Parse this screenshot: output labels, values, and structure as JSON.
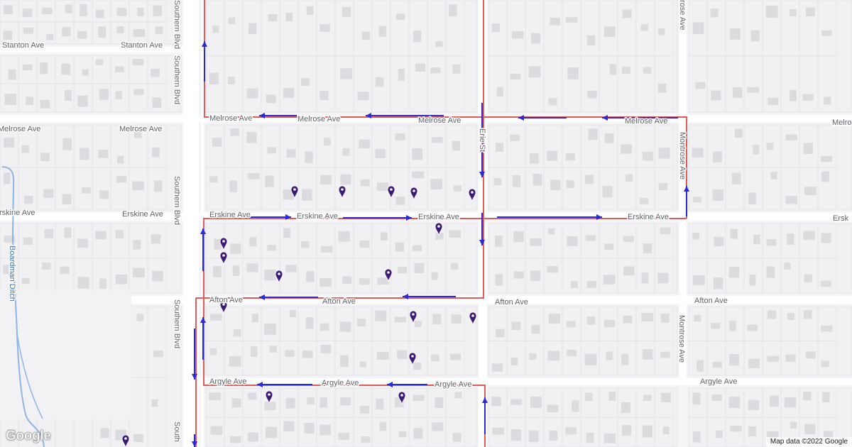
{
  "map": {
    "streets": {
      "stanton_left": "Stanton Ave",
      "stanton_right": "Stanton Ave",
      "melrose_left_a": "Melrose Ave",
      "melrose_left_b": "Melrose Ave",
      "melrose_mid_a": "Melrose Ave",
      "melrose_mid_b": "Melrose Ave",
      "melrose_mid_c": "Melrose Ave",
      "melrose_right": "Melrose Ave",
      "melrose_edge": "Melro",
      "erskine_left_a": "rskine Ave",
      "erskine_left_b": "Erskine Ave",
      "erskine_mid_a": "Erskine Ave",
      "erskine_mid_b": "Erskine Ave",
      "erskine_mid_c": "Erskine Ave",
      "erskine_right": "Erskine Ave",
      "erskine_edge": "Ersk",
      "afton_a": "Afton Ave",
      "afton_b": "Afton Ave",
      "afton_c": "Afton Ave",
      "afton_d": "Afton Ave",
      "argyle_a": "Argyle Ave",
      "argyle_b": "Argyle Ave",
      "argyle_c": "Argyle Ave",
      "argyle_d": "Argyle Ave",
      "southern_1": "Southern Blvd",
      "southern_2": "Southern Blvd",
      "southern_3": "Southern Blvd",
      "southern_4": "Southern Blvd",
      "southern_5": "South",
      "montrose_top": "rose Ave",
      "montrose_mid": "Montrose Ave",
      "montrose_low": "Montrose Ave",
      "erie": "Erie St",
      "ditch": "Boardman Ditch"
    },
    "colors": {
      "route": "#e25a5a",
      "arrow": "#2a2ad6",
      "marker": "#3c1a78",
      "road": "#ffffff",
      "lot": "#ececee",
      "building": "#dcdce0",
      "water": "#8fb4e6"
    },
    "marker_count": 17,
    "google_logo": "Google",
    "attribution": "Map data ©2022 Google"
  }
}
